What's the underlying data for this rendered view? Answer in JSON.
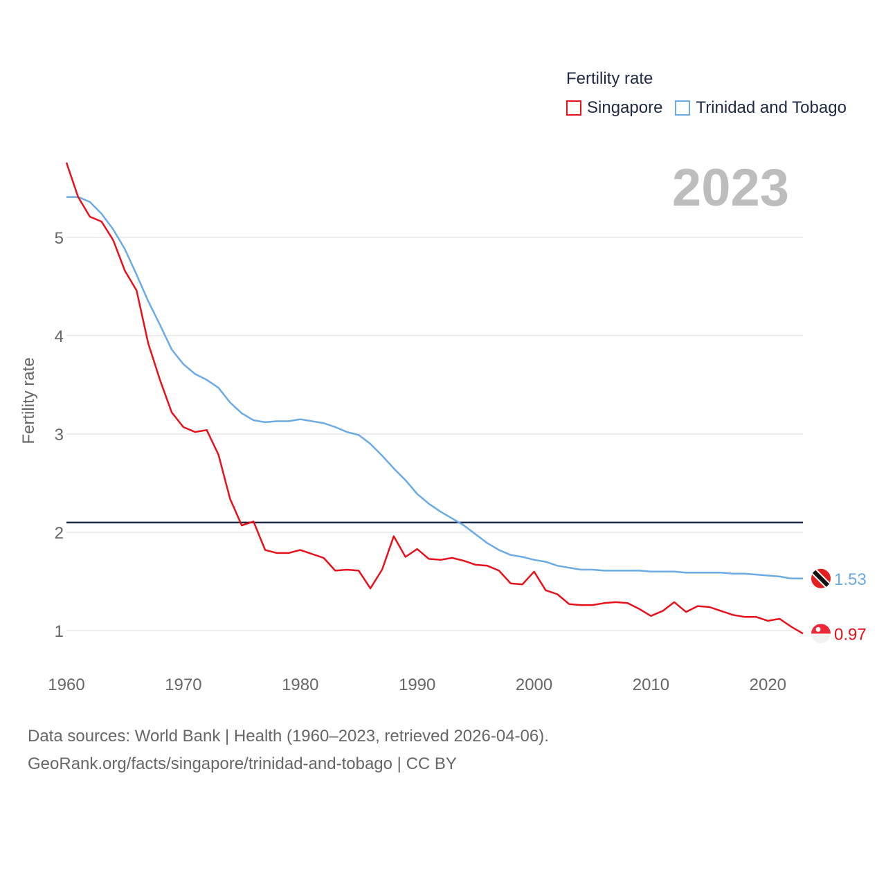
{
  "legend": {
    "title": "Fertility rate",
    "items": [
      {
        "label": "Singapore",
        "color": "#e8101a"
      },
      {
        "label": "Trinidad and Tobago",
        "color": "#6aabe5"
      }
    ]
  },
  "year_label": "2023",
  "source": {
    "line1": "Data sources: World Bank | Health (1960–2023, retrieved 2026-04-06).",
    "line2": "GeoRank.org/facts/singapore/trinidad-and-tobago | CC BY"
  },
  "chart_data": {
    "type": "line",
    "title": "Fertility rate",
    "xlabel": "",
    "ylabel": "Fertility rate",
    "xlim": [
      1960,
      2023
    ],
    "ylim": [
      0.55,
      5.9
    ],
    "x_ticks": [
      1960,
      1970,
      1980,
      1990,
      2000,
      2010,
      2020
    ],
    "y_ticks": [
      1,
      2,
      3,
      4,
      5
    ],
    "grid": true,
    "reference_line": {
      "value": 2.1,
      "color": "#1f2a44"
    },
    "x": [
      1960,
      1961,
      1962,
      1963,
      1964,
      1965,
      1966,
      1967,
      1968,
      1969,
      1970,
      1971,
      1972,
      1973,
      1974,
      1975,
      1976,
      1977,
      1978,
      1979,
      1980,
      1981,
      1982,
      1983,
      1984,
      1985,
      1986,
      1987,
      1988,
      1989,
      1990,
      1991,
      1992,
      1993,
      1994,
      1995,
      1996,
      1997,
      1998,
      1999,
      2000,
      2001,
      2002,
      2003,
      2004,
      2005,
      2006,
      2007,
      2008,
      2009,
      2010,
      2011,
      2012,
      2013,
      2014,
      2015,
      2016,
      2017,
      2018,
      2019,
      2020,
      2021,
      2022,
      2023
    ],
    "series": [
      {
        "name": "Singapore",
        "color": "#e8101a",
        "end_label": "0.97",
        "values": [
          5.76,
          5.41,
          5.21,
          5.16,
          4.97,
          4.66,
          4.46,
          3.92,
          3.55,
          3.22,
          3.07,
          3.02,
          3.04,
          2.79,
          2.34,
          2.07,
          2.11,
          1.82,
          1.79,
          1.79,
          1.82,
          1.78,
          1.74,
          1.61,
          1.62,
          1.61,
          1.43,
          1.62,
          1.96,
          1.75,
          1.83,
          1.73,
          1.72,
          1.74,
          1.71,
          1.67,
          1.66,
          1.61,
          1.48,
          1.47,
          1.6,
          1.41,
          1.37,
          1.27,
          1.26,
          1.26,
          1.28,
          1.29,
          1.28,
          1.22,
          1.15,
          1.2,
          1.29,
          1.19,
          1.25,
          1.24,
          1.2,
          1.16,
          1.14,
          1.14,
          1.1,
          1.12,
          1.04,
          0.97
        ]
      },
      {
        "name": "Trinidad and Tobago",
        "color": "#6aabe5",
        "end_label": "1.53",
        "values": [
          5.41,
          5.41,
          5.36,
          5.24,
          5.08,
          4.88,
          4.62,
          4.35,
          4.11,
          3.86,
          3.71,
          3.61,
          3.55,
          3.47,
          3.32,
          3.21,
          3.14,
          3.12,
          3.13,
          3.13,
          3.15,
          3.13,
          3.11,
          3.07,
          3.02,
          2.99,
          2.9,
          2.78,
          2.65,
          2.53,
          2.39,
          2.29,
          2.21,
          2.14,
          2.07,
          1.98,
          1.89,
          1.82,
          1.77,
          1.75,
          1.72,
          1.7,
          1.66,
          1.64,
          1.62,
          1.62,
          1.61,
          1.61,
          1.61,
          1.61,
          1.6,
          1.6,
          1.6,
          1.59,
          1.59,
          1.59,
          1.59,
          1.58,
          1.58,
          1.57,
          1.56,
          1.55,
          1.53,
          1.53
        ]
      }
    ]
  }
}
